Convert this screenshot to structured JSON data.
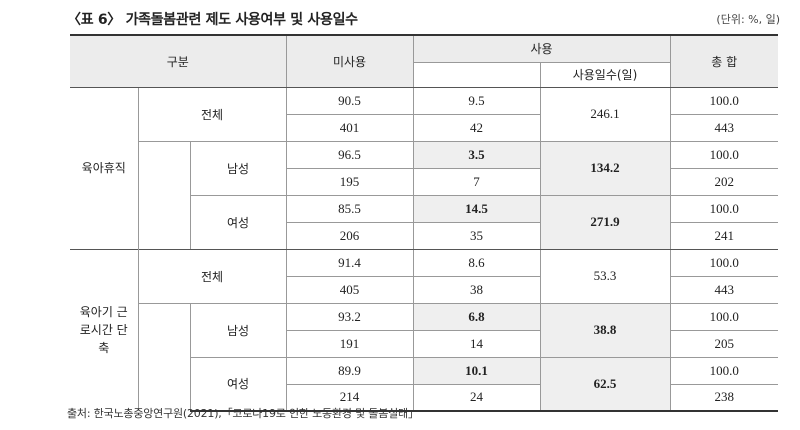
{
  "title": "〈표 6〉 가족돌봄관련 제도 사용여부 및 사용일수",
  "unit": "(단위: %, 일)",
  "source": "출처: 한국노총중앙연구원(2021),「코로나19로 인한 노동환경 및 돌봄실태」",
  "headers": {
    "category": "구분",
    "unused": "미사용",
    "used": "사용",
    "used_days": "사용일수(일)",
    "total": "총 합"
  },
  "groups": [
    {
      "label": "육아휴직",
      "rows": [
        {
          "label": "전체",
          "pct": [
            "90.5",
            "9.5",
            "100.0"
          ],
          "count": [
            "401",
            "42",
            "443"
          ],
          "days": "246.1"
        },
        {
          "label": "남성",
          "pct": [
            "96.5",
            "3.5",
            "100.0"
          ],
          "count": [
            "195",
            "7",
            "202"
          ],
          "days": "134.2"
        },
        {
          "label": "여성",
          "pct": [
            "85.5",
            "14.5",
            "100.0"
          ],
          "count": [
            "206",
            "35",
            "241"
          ],
          "days": "271.9"
        }
      ]
    },
    {
      "label": "육아기 근로시간 단축",
      "rows": [
        {
          "label": "전체",
          "pct": [
            "91.4",
            "8.6",
            "100.0"
          ],
          "count": [
            "405",
            "38",
            "443"
          ],
          "days": "53.3"
        },
        {
          "label": "남성",
          "pct": [
            "93.2",
            "6.8",
            "100.0"
          ],
          "count": [
            "191",
            "14",
            "205"
          ],
          "days": "38.8"
        },
        {
          "label": "여성",
          "pct": [
            "89.9",
            "10.1",
            "100.0"
          ],
          "count": [
            "214",
            "24",
            "238"
          ],
          "days": "62.5"
        }
      ]
    }
  ]
}
